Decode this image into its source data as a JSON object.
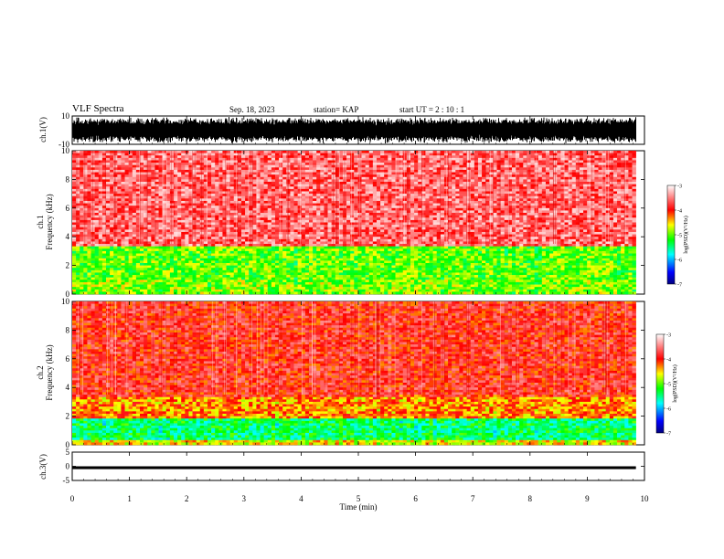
{
  "header": {
    "title": "VLF Spectra",
    "date": "Sep. 18, 2023",
    "station": "station= KAP",
    "start_ut": "start  UT =   2 : 10 : 1"
  },
  "chart_data": [
    {
      "type": "line",
      "name": "waveform-ch1",
      "ylabel": "ch.1(V)",
      "ylim": [
        -10,
        10
      ],
      "yticks": [
        -10,
        10
      ],
      "xlim": [
        0,
        10
      ],
      "note_values": "dense waveform; amplitude roughly -10 to +10 V"
    },
    {
      "type": "heatmap",
      "name": "spectrogram-ch1",
      "ylabel": "ch.1\nFrequency (kHz)",
      "ylim": [
        0,
        10
      ],
      "yticks": [
        0,
        2,
        4,
        6,
        8,
        10
      ],
      "xlim": [
        0,
        9.85
      ],
      "colorbar": {
        "label": "log(PSD)(V²/Hz)",
        "range": [
          -7,
          -3
        ],
        "ticks": [
          -3,
          -4,
          -5,
          -6,
          -7
        ]
      },
      "bands": [
        {
          "from": 0,
          "to": 1.0,
          "level": -4.9
        },
        {
          "from": 1.0,
          "to": 3.3,
          "level": -5.0
        },
        {
          "from": 3.3,
          "to": 10,
          "level": -3.6
        }
      ]
    },
    {
      "type": "heatmap",
      "name": "spectrogram-ch2",
      "ylabel": "ch.2\nFrequency (kHz)",
      "ylim": [
        0,
        10
      ],
      "yticks": [
        0,
        2,
        4,
        6,
        8,
        10
      ],
      "xlim": [
        0,
        9.85
      ],
      "colorbar": {
        "label": "log(PSD)(V²/Hz)",
        "range": [
          -7,
          -3
        ],
        "ticks": [
          -3,
          -4,
          -5,
          -6,
          -7
        ]
      },
      "bands": [
        {
          "from": 0,
          "to": 0.4,
          "level": -4.6
        },
        {
          "from": 0.4,
          "to": 1.8,
          "level": -5.4
        },
        {
          "from": 1.8,
          "to": 3.3,
          "level": -4.3
        },
        {
          "from": 3.3,
          "to": 10,
          "level": -3.9
        }
      ]
    },
    {
      "type": "line",
      "name": "waveform-ch3",
      "ylabel": "ch.3(V)",
      "ylim": [
        -5,
        5
      ],
      "yticks": [
        -5,
        0,
        5
      ],
      "xlim": [
        0,
        10
      ],
      "xlabel": "Time (min)",
      "xticks": [
        0,
        1,
        2,
        3,
        4,
        5,
        6,
        7,
        8,
        9,
        10
      ],
      "note_values": "nearly flat signal around -0.5 V"
    }
  ],
  "colors": {
    "spectrogram_high": "#ff0000",
    "spectrogram_mid": "#ffff00",
    "spectrogram_low": "#00ff00",
    "trace": "#000000"
  }
}
